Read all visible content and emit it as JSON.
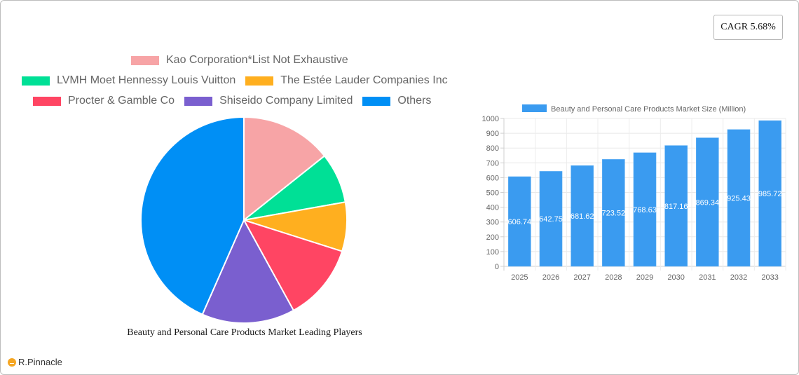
{
  "cagr_badge": {
    "label": "CAGR 5.68%"
  },
  "brand": {
    "name": "R.Pinnacle",
    "icon": "pinnacle-logo-icon",
    "color": "#f5a623"
  },
  "chart_data": [
    {
      "type": "pie",
      "title": "Beauty and Personal Care Products Market Leading Players",
      "legend_position": "top",
      "categories": [
        "Kao Corporation*List Not Exhaustive",
        "LVMH Moet Hennessy Louis Vuitton",
        "The Estée Lauder Companies Inc",
        "Procter & Gamble Co",
        "Shiseido Company Limited",
        "Others"
      ],
      "values": [
        14.3,
        7.9,
        7.7,
        12.1,
        14.6,
        43.4
      ],
      "colors": [
        "#f7a4a6",
        "#00e096",
        "#ffaf1f",
        "#ff4563",
        "#7a5fcf",
        "#008ff5"
      ],
      "unit": "% share (estimated from slice angles)"
    },
    {
      "type": "bar",
      "title": "",
      "legend": [
        "Beauty and Personal Care Products Market Size (Million)"
      ],
      "legend_position": "top",
      "categories": [
        "2025",
        "2026",
        "2027",
        "2028",
        "2029",
        "2030",
        "2031",
        "2032",
        "2033"
      ],
      "series": [
        {
          "name": "Beauty and Personal Care Products Market Size (Million)",
          "values": [
            606.74,
            642.75,
            681.62,
            723.52,
            768.63,
            817.16,
            869.34,
            925.43,
            985.72
          ],
          "data_labels": [
            "606.74",
            "642.75",
            "681.62",
            "723.52",
            "768.63",
            "817.16",
            "869.34",
            "925.43",
            "985.72"
          ],
          "color": "#3a9bf0"
        }
      ],
      "xlabel": "",
      "ylabel": "",
      "ylim": [
        0,
        1000
      ],
      "yticks": [
        "0",
        "100",
        "200",
        "300",
        "400",
        "500",
        "600",
        "700",
        "800",
        "900",
        "1000"
      ],
      "grid": true
    }
  ]
}
